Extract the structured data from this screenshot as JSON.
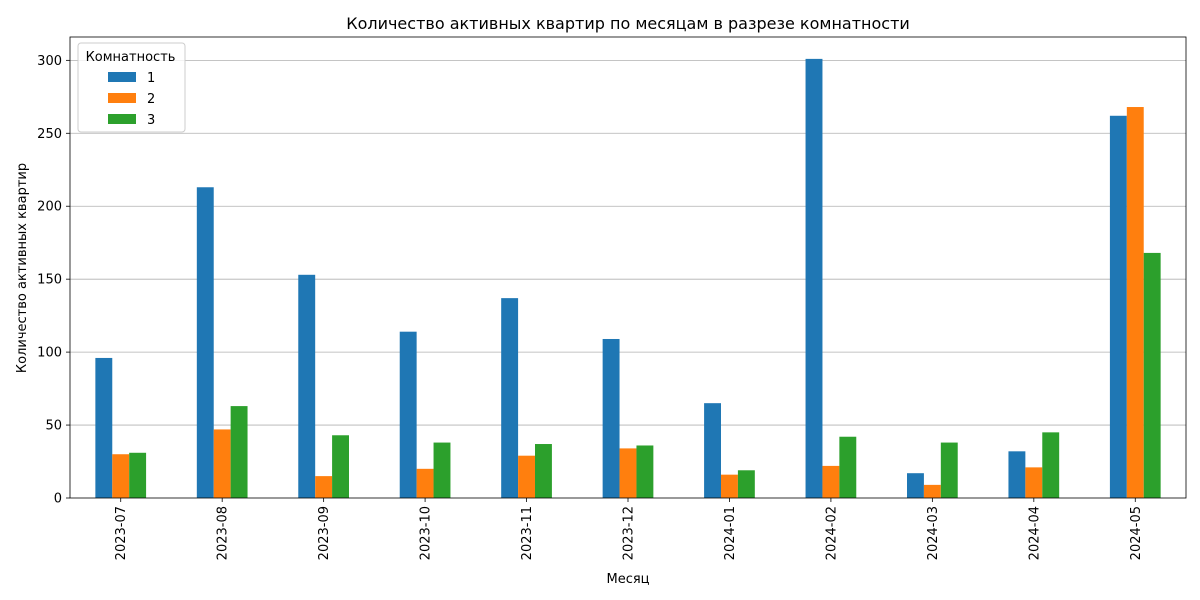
{
  "chart_data": {
    "type": "bar",
    "title": "Количество активных квартир по месяцам в разрезе комнатности",
    "xlabel": "Месяц",
    "ylabel": "Количество активных квартир",
    "categories": [
      "2023-07",
      "2023-08",
      "2023-09",
      "2023-10",
      "2023-11",
      "2023-12",
      "2024-01",
      "2024-02",
      "2024-03",
      "2024-04",
      "2024-05"
    ],
    "series": [
      {
        "name": "1",
        "color": "#1f77b4",
        "values": [
          96,
          213,
          153,
          114,
          137,
          109,
          65,
          301,
          17,
          32,
          262
        ]
      },
      {
        "name": "2",
        "color": "#ff7f0e",
        "values": [
          30,
          47,
          15,
          20,
          29,
          34,
          16,
          22,
          9,
          21,
          268
        ]
      },
      {
        "name": "3",
        "color": "#2ca02c",
        "values": [
          31,
          63,
          43,
          38,
          37,
          36,
          19,
          42,
          38,
          45,
          168
        ]
      }
    ],
    "ylim": [
      0,
      316
    ],
    "yticks": [
      0,
      50,
      100,
      150,
      200,
      250,
      300
    ],
    "grid": "y",
    "legend": {
      "title": "Комнатность",
      "placement": "top-left"
    }
  }
}
